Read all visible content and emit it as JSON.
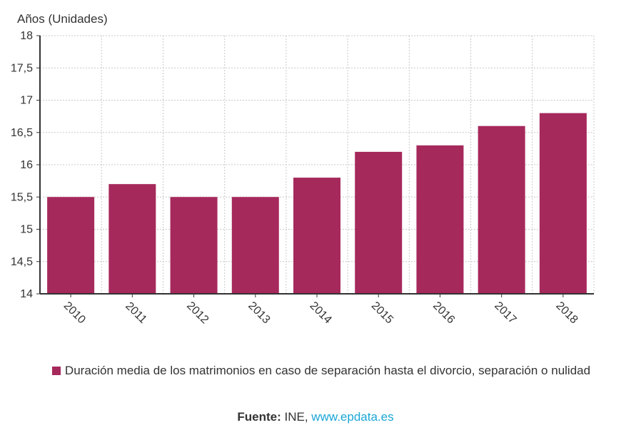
{
  "chart_data": {
    "type": "bar",
    "ylabel": "Años (Unidades)",
    "categories": [
      "2010",
      "2011",
      "2012",
      "2013",
      "2014",
      "2015",
      "2016",
      "2017",
      "2018"
    ],
    "series": [
      {
        "name": "Duración media de los matrimonios en caso de separación hasta el divorcio, separación o nulidad",
        "values": [
          15.5,
          15.7,
          15.5,
          15.5,
          15.8,
          16.2,
          16.3,
          16.6,
          16.8
        ]
      }
    ],
    "ylim": [
      14,
      18
    ],
    "yticks": [
      14,
      14.5,
      15,
      15.5,
      16,
      16.5,
      17,
      17.5,
      18
    ],
    "ytick_labels": [
      "14",
      "14,5",
      "15",
      "15,5",
      "16",
      "16,5",
      "17",
      "17,5",
      "18"
    ],
    "grid": true,
    "legend_position": "bottom",
    "bar_color": "#a6295c"
  },
  "source": {
    "label": "Fuente:",
    "text": " INE, ",
    "link": "www.epdata.es",
    "link_color": "#1aa6d6"
  }
}
